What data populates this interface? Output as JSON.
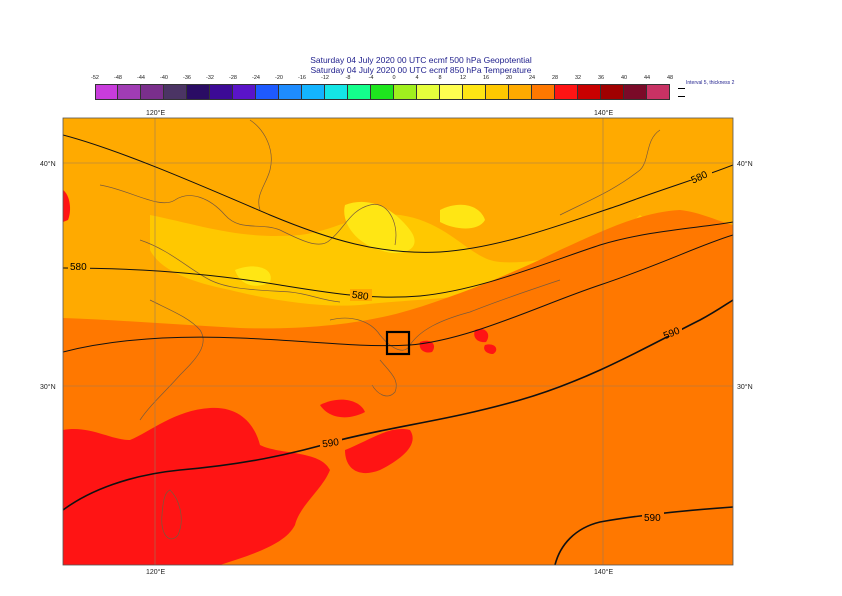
{
  "title_line1": "Saturday 04 July 2020 00 UTC ecmf 500 hPa  Geopotential",
  "title_line2": "Saturday 04 July 2020 00 UTC ecmf 850 hPa  Temperature",
  "legend": {
    "ticks": [
      "-52",
      "-48",
      "-44",
      "-40",
      "-36",
      "-32",
      "-28",
      "-24",
      "-20",
      "-16",
      "-12",
      "-8",
      "-4",
      "0",
      "4",
      "8",
      "12",
      "16",
      "20",
      "24",
      "28",
      "32",
      "36",
      "40",
      "44",
      "48"
    ],
    "colors": [
      "#c83cdc",
      "#a03cb4",
      "#7a2f8c",
      "#4b3464",
      "#2a0c64",
      "#3c0a96",
      "#5a14c8",
      "#1e5aff",
      "#1e8cff",
      "#14b4ff",
      "#14e6e6",
      "#14ff8c",
      "#1ee61e",
      "#a0f01e",
      "#e6ff3c",
      "#ffff50",
      "#ffe614",
      "#ffc800",
      "#ffaa00",
      "#ff7800",
      "#ff1414",
      "#c80000",
      "#a00000",
      "#7a0a28",
      "#c83264",
      "#ff1ec8",
      "#ff6ee6",
      "#ffb4f0"
    ],
    "note": "Interval 5, thickness 2"
  },
  "axes": {
    "lon_top": [
      "120°E",
      "140°E"
    ],
    "lon_bottom": [
      "120°E",
      "140°E"
    ],
    "lat_left": [
      "40°N",
      "30°N"
    ],
    "lat_right": [
      "40°N",
      "30°N"
    ]
  },
  "contour_labels": [
    "580",
    "580",
    "580",
    "590",
    "590",
    "590"
  ],
  "field_colors": {
    "warm_low": "#ffaa00",
    "mid": "#ffc800",
    "high": "#ff7800",
    "hottest": "#ff1414",
    "coolest": "#ffe614"
  },
  "box_marker": "square-station-marker"
}
